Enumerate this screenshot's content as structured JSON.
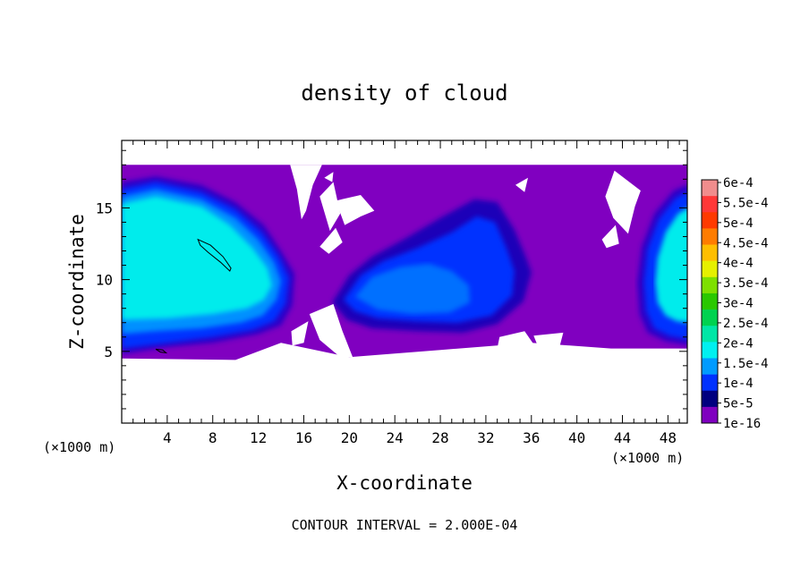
{
  "chart_data": {
    "type": "heatmap",
    "title": "density of cloud",
    "xlabel": "X-coordinate",
    "ylabel": "Z-coordinate",
    "x_unit_label_left": "(×1000 m)",
    "x_unit_label_right": "(×1000 m)",
    "footer": "CONTOUR INTERVAL = 2.000E-04",
    "xlim": [
      0,
      49.7
    ],
    "ylim": [
      0,
      19.7
    ],
    "x_ticks": [
      {
        "value": 4,
        "label": "4"
      },
      {
        "value": 8,
        "label": "8"
      },
      {
        "value": 12,
        "label": "12"
      },
      {
        "value": 16,
        "label": "16"
      },
      {
        "value": 20,
        "label": "20"
      },
      {
        "value": 24,
        "label": "24"
      },
      {
        "value": 28,
        "label": "28"
      },
      {
        "value": 32,
        "label": "32"
      },
      {
        "value": 36,
        "label": "36"
      },
      {
        "value": 40,
        "label": "40"
      },
      {
        "value": 44,
        "label": "44"
      },
      {
        "value": 48,
        "label": "48"
      }
    ],
    "y_ticks": [
      {
        "value": 5,
        "label": "5"
      },
      {
        "value": 10,
        "label": "10"
      },
      {
        "value": 15,
        "label": "15"
      }
    ],
    "colorbar": [
      {
        "label": "6e-4",
        "color": "#f08d8d"
      },
      {
        "label": "5.5e-4",
        "color": "#ff3838"
      },
      {
        "label": "5e-4",
        "color": "#ff3a00"
      },
      {
        "label": "4.5e-4",
        "color": "#ff7c00"
      },
      {
        "label": "4e-4",
        "color": "#ffbe00"
      },
      {
        "label": "3.5e-4",
        "color": "#e6f000"
      },
      {
        "label": "3e-4",
        "color": "#7ee000"
      },
      {
        "label": "2.5e-4",
        "color": "#2ac800"
      },
      {
        "label": "2e-4",
        "color": "#00d250"
      },
      {
        "label": "1.5e-4",
        "color": "#00e6a6"
      },
      {
        "label": "1e-4",
        "color": "#00f0f0"
      },
      {
        "label": "5e-5",
        "color": "#009bff"
      },
      {
        "label": "1e-16",
        "color": "#0032ff"
      },
      {
        "label": "",
        "color": "#00007f"
      },
      {
        "label": "",
        "color": "#7f00bf"
      }
    ],
    "colorbar_label_slots": [
      0,
      1,
      2,
      3,
      4,
      5,
      6,
      7,
      8,
      9,
      10,
      11,
      12
    ],
    "regions": [
      {
        "name": "cloud-envelope",
        "color": "#8000c0",
        "points": [
          [
            0,
            18
          ],
          [
            50,
            18
          ],
          [
            50,
            5.2
          ],
          [
            43,
            5.2
          ],
          [
            36,
            5.6
          ],
          [
            28,
            5.1
          ],
          [
            20,
            4.6
          ],
          [
            14,
            5.6
          ],
          [
            10,
            4.4
          ],
          [
            0,
            4.5
          ]
        ]
      },
      {
        "name": "left-cell-outer",
        "color": "#2a00c8",
        "points": [
          [
            0,
            4.8
          ],
          [
            0,
            16.8
          ],
          [
            3,
            17.2
          ],
          [
            7,
            16.6
          ],
          [
            10,
            15.4
          ],
          [
            12.5,
            13.8
          ],
          [
            14,
            12
          ],
          [
            15.2,
            10.4
          ],
          [
            15,
            8.2
          ],
          [
            14,
            6.8
          ],
          [
            12,
            6.2
          ],
          [
            8,
            5.6
          ],
          [
            4,
            5.3
          ]
        ]
      },
      {
        "name": "left-cell-blue",
        "color": "#0032ff",
        "points": [
          [
            0,
            5.2
          ],
          [
            0,
            16.3
          ],
          [
            3,
            16.8
          ],
          [
            7,
            16.1
          ],
          [
            10,
            14.9
          ],
          [
            12.3,
            13.3
          ],
          [
            13.8,
            11.6
          ],
          [
            14.7,
            10.1
          ],
          [
            14.4,
            8.3
          ],
          [
            13.4,
            7.1
          ],
          [
            11.5,
            6.5
          ],
          [
            8,
            6
          ],
          [
            4,
            5.6
          ]
        ]
      },
      {
        "name": "left-cell-mid",
        "color": "#0090ff",
        "points": [
          [
            0,
            6.2
          ],
          [
            0,
            15.8
          ],
          [
            3,
            16.3
          ],
          [
            7,
            15.6
          ],
          [
            10,
            14.3
          ],
          [
            12,
            12.8
          ],
          [
            13.4,
            11.2
          ],
          [
            14,
            9.9
          ],
          [
            13.6,
            8.6
          ],
          [
            12.4,
            7.5
          ],
          [
            10.5,
            7
          ],
          [
            7,
            6.6
          ],
          [
            3,
            6.4
          ]
        ]
      },
      {
        "name": "left-cell-core",
        "color": "#00ecec",
        "points": [
          [
            0,
            7.2
          ],
          [
            0,
            15.3
          ],
          [
            3,
            15.8
          ],
          [
            7,
            15.1
          ],
          [
            9.5,
            13.8
          ],
          [
            11.5,
            12.2
          ],
          [
            12.8,
            10.8
          ],
          [
            13.2,
            9.6
          ],
          [
            12.5,
            8.6
          ],
          [
            11,
            8
          ],
          [
            8,
            7.6
          ],
          [
            4,
            7.3
          ]
        ]
      },
      {
        "name": "middle-cell-outer",
        "color": "#1a00b8",
        "points": [
          [
            18.5,
            8.4
          ],
          [
            20,
            10.3
          ],
          [
            22,
            11.6
          ],
          [
            25,
            12.9
          ],
          [
            28,
            14.3
          ],
          [
            31,
            15.6
          ],
          [
            33,
            15.4
          ],
          [
            34.5,
            13.5
          ],
          [
            35.5,
            11.6
          ],
          [
            36,
            10.5
          ],
          [
            35.3,
            8.5
          ],
          [
            33,
            6.9
          ],
          [
            30,
            6.3
          ],
          [
            26,
            6.4
          ],
          [
            22,
            6.6
          ],
          [
            19.8,
            7.2
          ]
        ]
      },
      {
        "name": "middle-cell-blue",
        "color": "#0032ff",
        "points": [
          [
            19.5,
            8.6
          ],
          [
            21,
            10.3
          ],
          [
            23,
            11.3
          ],
          [
            26,
            12.2
          ],
          [
            29,
            13.3
          ],
          [
            31.2,
            14.4
          ],
          [
            32.8,
            14
          ],
          [
            33.8,
            12.2
          ],
          [
            34.5,
            10.6
          ],
          [
            34.3,
            8.9
          ],
          [
            32.5,
            7.5
          ],
          [
            29.5,
            7
          ],
          [
            26,
            7.1
          ],
          [
            22.5,
            7.3
          ],
          [
            20.5,
            7.8
          ]
        ]
      },
      {
        "name": "middle-cell-mid",
        "color": "#0070ff",
        "points": [
          [
            20.5,
            8.8
          ],
          [
            22,
            10.2
          ],
          [
            24.5,
            10.9
          ],
          [
            27,
            11.1
          ],
          [
            29,
            10.6
          ],
          [
            30.5,
            9.6
          ],
          [
            30.6,
            8.4
          ],
          [
            28.8,
            7.7
          ],
          [
            25.5,
            7.6
          ],
          [
            22.5,
            7.9
          ]
        ]
      },
      {
        "name": "right-cell-outer",
        "color": "#2a00c8",
        "points": [
          [
            50,
            5.4
          ],
          [
            50,
            16.7
          ],
          [
            48.5,
            16.2
          ],
          [
            46.8,
            14.6
          ],
          [
            45.7,
            12.3
          ],
          [
            45.3,
            9.8
          ],
          [
            45.5,
            7.6
          ],
          [
            46.2,
            6.3
          ],
          [
            47.8,
            5.7
          ]
        ]
      },
      {
        "name": "right-cell-blue",
        "color": "#0032ff",
        "points": [
          [
            50,
            5.8
          ],
          [
            50,
            16.2
          ],
          [
            48.7,
            15.7
          ],
          [
            47.2,
            14.2
          ],
          [
            46.2,
            12.1
          ],
          [
            45.9,
            9.8
          ],
          [
            46.1,
            7.8
          ],
          [
            46.8,
            6.6
          ],
          [
            48.1,
            6.1
          ]
        ]
      },
      {
        "name": "right-cell-core",
        "color": "#00ecec",
        "points": [
          [
            50,
            7
          ],
          [
            50,
            15.1
          ],
          [
            48.9,
            14.6
          ],
          [
            47.8,
            13.3
          ],
          [
            47.1,
            11.5
          ],
          [
            46.9,
            9.8
          ],
          [
            47.1,
            8.4
          ],
          [
            47.8,
            7.5
          ],
          [
            48.8,
            7.1
          ]
        ]
      }
    ],
    "gaps": [
      {
        "points": [
          [
            14.8,
            18
          ],
          [
            17.6,
            18
          ],
          [
            16.8,
            16.6
          ],
          [
            16.2,
            14.8
          ],
          [
            15.8,
            14.2
          ],
          [
            15.4,
            16.3
          ]
        ]
      },
      {
        "points": [
          [
            17.4,
            15.8
          ],
          [
            18.6,
            16.8
          ],
          [
            19.2,
            14.6
          ],
          [
            18.3,
            13.4
          ]
        ]
      },
      {
        "points": [
          [
            18.8,
            15.5
          ],
          [
            21,
            15.9
          ],
          [
            22.2,
            14.8
          ],
          [
            21,
            14.4
          ],
          [
            19.6,
            13.8
          ]
        ]
      },
      {
        "points": [
          [
            18.8,
            13.6
          ],
          [
            19.4,
            12.6
          ],
          [
            18.2,
            11.8
          ],
          [
            17.4,
            12.3
          ]
        ]
      },
      {
        "points": [
          [
            16.5,
            7.6
          ],
          [
            18.6,
            8.3
          ],
          [
            19.4,
            6.4
          ],
          [
            20.3,
            4.6
          ],
          [
            19.2,
            4.6
          ],
          [
            17.4,
            5.8
          ]
        ]
      },
      {
        "points": [
          [
            14.9,
            6.4
          ],
          [
            16.4,
            7.1
          ],
          [
            16,
            5.6
          ],
          [
            15,
            5.4
          ]
        ]
      },
      {
        "points": [
          [
            33.2,
            6
          ],
          [
            35.4,
            6.4
          ],
          [
            36.2,
            5.5
          ],
          [
            34.6,
            5.1
          ],
          [
            33,
            5.2
          ]
        ]
      },
      {
        "points": [
          [
            36.2,
            6.1
          ],
          [
            38.8,
            6.3
          ],
          [
            38.5,
            5.4
          ],
          [
            36.6,
            5.3
          ]
        ]
      },
      {
        "points": [
          [
            43.3,
            17.6
          ],
          [
            45.6,
            16.2
          ],
          [
            45.1,
            15.1
          ],
          [
            44.5,
            13.2
          ],
          [
            43.2,
            14.3
          ],
          [
            42.5,
            15.8
          ]
        ]
      },
      {
        "points": [
          [
            42.2,
            12.8
          ],
          [
            43.4,
            13.8
          ],
          [
            43.7,
            12.5
          ],
          [
            42.6,
            12.2
          ]
        ]
      },
      {
        "points": [
          [
            34.6,
            16.6
          ],
          [
            35.7,
            17.1
          ],
          [
            35.4,
            16.1
          ]
        ]
      },
      {
        "points": [
          [
            17.8,
            17.1
          ],
          [
            18.6,
            17.5
          ],
          [
            18.5,
            16.8
          ]
        ]
      }
    ],
    "contour_loops": [
      {
        "points": [
          [
            6.7,
            12.8
          ],
          [
            7.8,
            12.4
          ],
          [
            8.9,
            11.6
          ],
          [
            9.6,
            10.8
          ],
          [
            9.5,
            10.6
          ],
          [
            8.7,
            11.2
          ],
          [
            7.6,
            11.9
          ],
          [
            6.9,
            12.4
          ]
        ]
      },
      {
        "points": [
          [
            3,
            5.15
          ],
          [
            3.4,
            4.95
          ],
          [
            3.9,
            4.9
          ],
          [
            3.6,
            5.1
          ]
        ]
      }
    ]
  }
}
